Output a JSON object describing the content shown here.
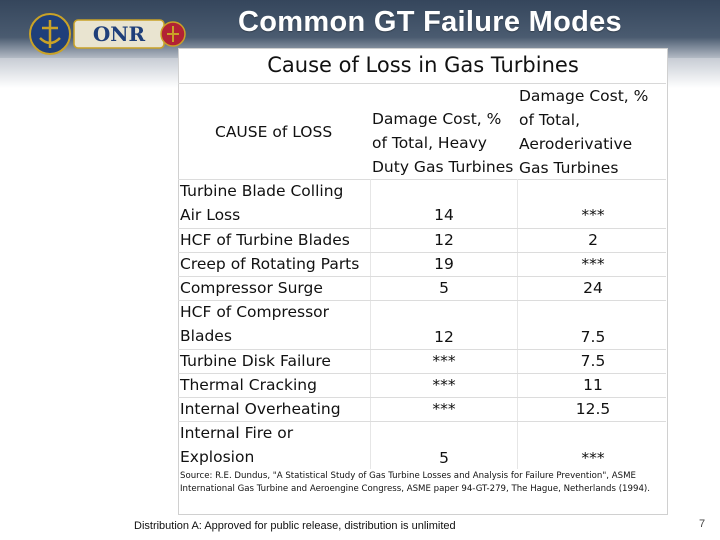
{
  "slide": {
    "title": "Common GT Failure Modes",
    "table_title": "Cause of Loss in Gas Turbines",
    "columns": {
      "cause": "CAUSE of LOSS",
      "heavy_duty": [
        "Damage Cost, %",
        "of Total, Heavy",
        "Duty Gas Turbines"
      ],
      "aeroderivative": [
        "Damage Cost, %",
        "of Total,",
        "Aeroderivative",
        "Gas Turbines"
      ]
    },
    "rows": [
      {
        "cause": [
          "Turbine Blade Colling",
          "Air Loss"
        ],
        "heavy_duty": "14",
        "aeroderivative": "***"
      },
      {
        "cause": [
          "HCF of Turbine Blades"
        ],
        "heavy_duty": "12",
        "aeroderivative": "2"
      },
      {
        "cause": [
          "Creep of Rotating Parts"
        ],
        "heavy_duty": "19",
        "aeroderivative": "***"
      },
      {
        "cause": [
          "Compressor Surge"
        ],
        "heavy_duty": "5",
        "aeroderivative": "24"
      },
      {
        "cause": [
          "HCF of Compressor",
          "Blades"
        ],
        "heavy_duty": "12",
        "aeroderivative": "7.5"
      },
      {
        "cause": [
          "Turbine Disk Failure"
        ],
        "heavy_duty": "***",
        "aeroderivative": "7.5"
      },
      {
        "cause": [
          "Thermal Cracking"
        ],
        "heavy_duty": "***",
        "aeroderivative": "11"
      },
      {
        "cause": [
          "Internal Overheating"
        ],
        "heavy_duty": "***",
        "aeroderivative": "12.5"
      },
      {
        "cause": [
          "Internal Fire or",
          "Explosion"
        ],
        "heavy_duty": "5",
        "aeroderivative": "***"
      }
    ],
    "source": "Source: R.E. Dundus, \"A Statistical Study of Gas Turbine Losses and Analysis for Failure Prevention\", ASME International Gas Turbine and Aeroengine Congress, ASME paper 94-GT-279, The Hague, Netherlands (1994).",
    "footer": "Distribution A: Approved for public release, distribution is unlimited",
    "page_number": "7"
  },
  "logo": {
    "text": "ONR",
    "colors": {
      "gold": "#c9a227",
      "blue": "#1f3f7a",
      "red": "#b22234"
    }
  },
  "colors": {
    "header_top": "#35465c",
    "header_bottom": "#c7ccd4",
    "title_text": "#ffffff"
  }
}
